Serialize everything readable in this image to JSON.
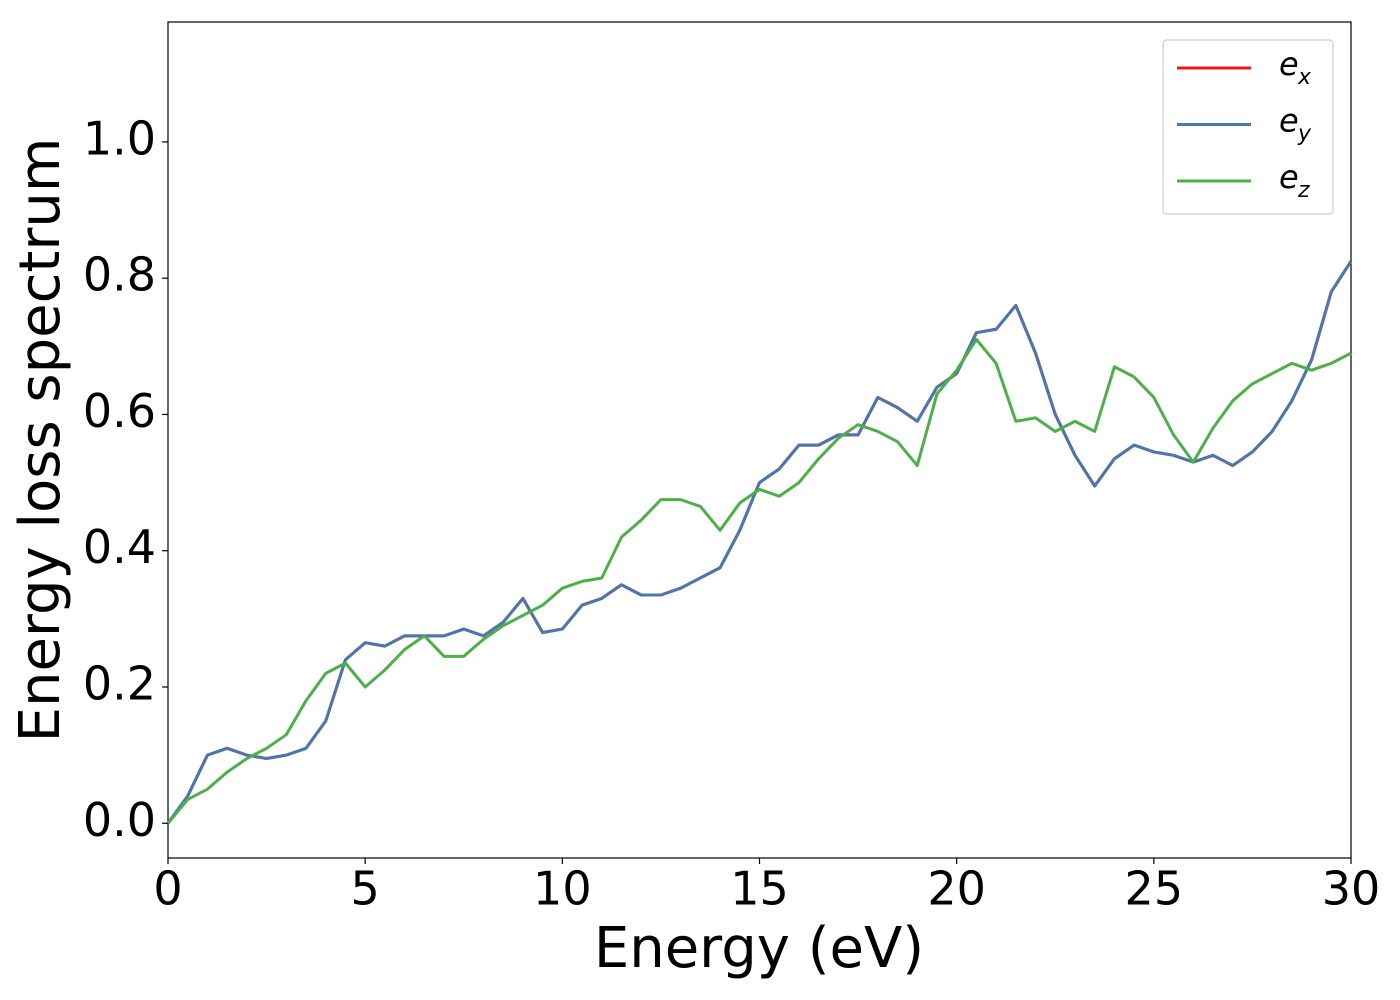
{
  "chart_data": {
    "type": "line",
    "xlabel": "Energy (eV)",
    "ylabel": "Energy loss spectrum",
    "x": [
      0,
      0.5,
      1,
      1.5,
      2,
      2.5,
      3,
      3.5,
      4,
      4.5,
      5,
      5.5,
      6,
      6.5,
      7,
      7.5,
      8,
      8.5,
      9,
      9.5,
      10,
      10.5,
      11,
      11.5,
      12,
      12.5,
      13,
      13.5,
      14,
      14.5,
      15,
      15.5,
      16,
      16.5,
      17,
      17.5,
      18,
      18.5,
      19,
      19.5,
      20,
      20.5,
      21,
      21.5,
      22,
      22.5,
      23,
      23.5,
      24,
      24.5,
      25,
      25.5,
      26,
      26.5,
      27,
      27.5,
      28,
      28.5,
      29,
      29.5,
      30
    ],
    "series": [
      {
        "name": "e",
        "subscript": "x",
        "color": "#e41a1c",
        "values": [
          0,
          0.04,
          0.1,
          0.11,
          0.1,
          0.095,
          0.1,
          0.11,
          0.15,
          0.24,
          0.265,
          0.26,
          0.275,
          0.275,
          0.275,
          0.285,
          0.275,
          0.295,
          0.33,
          0.28,
          0.285,
          0.32,
          0.33,
          0.35,
          0.335,
          0.335,
          0.345,
          0.36,
          0.375,
          0.43,
          0.5,
          0.52,
          0.555,
          0.555,
          0.57,
          0.57,
          0.625,
          0.61,
          0.59,
          0.64,
          0.66,
          0.72,
          0.725,
          0.76,
          0.69,
          0.6,
          0.54,
          0.495,
          0.535,
          0.555,
          0.545,
          0.54,
          0.53,
          0.54,
          0.525,
          0.545,
          0.575,
          0.62,
          0.68,
          0.78,
          0.825
        ]
      },
      {
        "name": "e",
        "subscript": "y",
        "color": "#4a78ad",
        "values": [
          0,
          0.04,
          0.1,
          0.11,
          0.1,
          0.095,
          0.1,
          0.11,
          0.15,
          0.24,
          0.265,
          0.26,
          0.275,
          0.275,
          0.275,
          0.285,
          0.275,
          0.295,
          0.33,
          0.28,
          0.285,
          0.32,
          0.33,
          0.35,
          0.335,
          0.335,
          0.345,
          0.36,
          0.375,
          0.43,
          0.5,
          0.52,
          0.555,
          0.555,
          0.57,
          0.57,
          0.625,
          0.61,
          0.59,
          0.64,
          0.66,
          0.72,
          0.725,
          0.76,
          0.69,
          0.6,
          0.54,
          0.495,
          0.535,
          0.555,
          0.545,
          0.54,
          0.53,
          0.54,
          0.525,
          0.545,
          0.575,
          0.62,
          0.68,
          0.78,
          0.825
        ]
      },
      {
        "name": "e",
        "subscript": "z",
        "color": "#4daf4a",
        "values": [
          0,
          0.035,
          0.05,
          0.075,
          0.095,
          0.11,
          0.13,
          0.18,
          0.22,
          0.235,
          0.2,
          0.225,
          0.255,
          0.275,
          0.245,
          0.245,
          0.27,
          0.29,
          0.305,
          0.32,
          0.345,
          0.355,
          0.36,
          0.42,
          0.445,
          0.475,
          0.475,
          0.465,
          0.43,
          0.47,
          0.49,
          0.48,
          0.5,
          0.535,
          0.565,
          0.585,
          0.575,
          0.56,
          0.525,
          0.63,
          0.665,
          0.71,
          0.675,
          0.59,
          0.595,
          0.575,
          0.59,
          0.575,
          0.67,
          0.655,
          0.625,
          0.57,
          0.53,
          0.58,
          0.62,
          0.645,
          0.66,
          0.675,
          0.665,
          0.675,
          0.69
        ]
      }
    ],
    "xlim": [
      0,
      30
    ],
    "xticks": [
      0,
      5,
      10,
      15,
      20,
      25,
      30
    ],
    "ylim": [
      -0.051,
      1.176
    ],
    "yticks": [
      {
        "value": 0,
        "label": "0.0"
      },
      0.2,
      0.4,
      0.6,
      0.8,
      {
        "value": 1,
        "label": "1.0"
      }
    ],
    "grid": false,
    "legend": "upper right"
  }
}
